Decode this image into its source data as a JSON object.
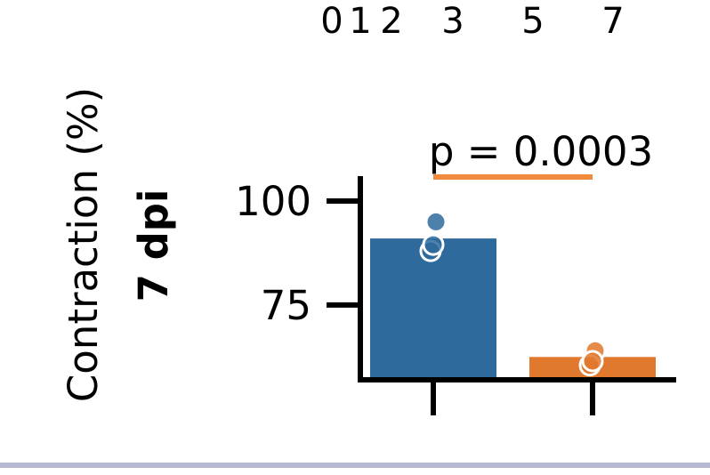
{
  "header": {
    "top_ticks": [
      "0",
      "1",
      "2",
      "3",
      "5",
      "7"
    ]
  },
  "chart_data": {
    "type": "bar",
    "categories": [
      "",
      ""
    ],
    "xlabel": "",
    "ylabel_line1": "Contraction (%)",
    "ylabel_line2": "7 dpi",
    "ylim": [
      57,
      106
    ],
    "yticks": [
      75,
      100
    ],
    "ytick_labels": [
      "75",
      "100"
    ],
    "colors": [
      "#2e6a9c",
      "#e0782e"
    ],
    "values": [
      91,
      62.5
    ],
    "points": [
      [
        95,
        88,
        89.5
      ],
      [
        64,
        60.5,
        61.5
      ]
    ],
    "significance": {
      "label": "p = 0.0003",
      "color": "#f08a3c",
      "between": [
        0,
        1
      ]
    },
    "grid": false,
    "legend": "none"
  }
}
